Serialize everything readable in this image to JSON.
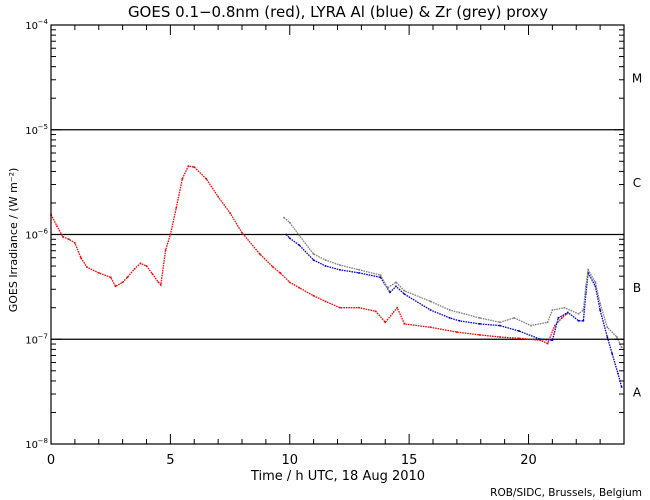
{
  "chart_data": {
    "type": "line",
    "title": "GOES 0.1−0.8nm (red), LYRA Al (blue) & Zr (grey) proxy",
    "xlabel": "Time / h UTC, 18 Aug 2010",
    "ylabel": "GOES Irradiance / (W m⁻²)",
    "xlim": [
      0,
      24
    ],
    "ylim": [
      1e-08,
      0.0001
    ],
    "yscale": "log",
    "x_ticks": [
      0,
      5,
      10,
      15,
      20
    ],
    "x_tick_labels": [
      "0",
      "5",
      "10",
      "15",
      "20"
    ],
    "y_ticks": [
      1e-08,
      1e-07,
      1e-06,
      1e-05,
      0.0001
    ],
    "y_tick_labels": [
      {
        "base": "10",
        "exp": "−8"
      },
      {
        "base": "10",
        "exp": "−7"
      },
      {
        "base": "10",
        "exp": "−6"
      },
      {
        "base": "10",
        "exp": "−5"
      },
      {
        "base": "10",
        "exp": "−4"
      }
    ],
    "reference_lines": [
      1e-07,
      1e-06,
      1e-05
    ],
    "flare_classes": [
      {
        "label": "A",
        "low": 1e-08,
        "high": 1e-07
      },
      {
        "label": "B",
        "low": 1e-07,
        "high": 1e-06
      },
      {
        "label": "C",
        "low": 1e-06,
        "high": 1e-05
      },
      {
        "label": "M",
        "low": 1e-05,
        "high": 0.0001
      }
    ],
    "grid": false,
    "series": [
      {
        "name": "GOES 0.1-0.8nm",
        "color": "#ff0000",
        "x": [
          0,
          0.25,
          0.5,
          0.75,
          1.0,
          1.25,
          1.5,
          2.0,
          2.5,
          2.7,
          3.0,
          3.2,
          3.5,
          3.75,
          4.0,
          4.25,
          4.5,
          4.6,
          4.8,
          5.0,
          5.25,
          5.5,
          5.75,
          6.0,
          6.5,
          7.0,
          7.5,
          8.0,
          8.75,
          9.3,
          9.6,
          10.0,
          10.4,
          11.0,
          11.5,
          12.1,
          12.9,
          13.6,
          14.0,
          14.5,
          14.8,
          15.9,
          17.0,
          17.95,
          18.8,
          19.6,
          20.5,
          20.8,
          21.1,
          21.4,
          21.6
        ],
        "values": [
          1.55e-06,
          1.2e-06,
          9.5e-07,
          9e-07,
          8.3e-07,
          6e-07,
          4.9e-07,
          4.3e-07,
          3.9e-07,
          3.2e-07,
          3.5e-07,
          3.9e-07,
          4.7e-07,
          5.3e-07,
          5e-07,
          4.2e-07,
          3.5e-07,
          3.3e-07,
          7.1e-07,
          1e-06,
          1.8e-06,
          3.4e-06,
          4.5e-06,
          4.4e-06,
          3.4e-06,
          2.3e-06,
          1.6e-06,
          1.04e-06,
          6.5e-07,
          4.9e-07,
          4.3e-07,
          3.5e-07,
          3.1e-07,
          2.6e-07,
          2.3e-07,
          2e-07,
          2e-07,
          1.85e-07,
          1.45e-07,
          2e-07,
          1.4e-07,
          1.3e-07,
          1.17e-07,
          1.1e-07,
          1.05e-07,
          1.02e-07,
          9.8e-08,
          9.1e-08,
          1.35e-07,
          1.6e-07,
          1.75e-07
        ]
      },
      {
        "name": "LYRA Al proxy",
        "color": "#0000cc",
        "x": [
          9.85,
          10.0,
          10.4,
          11.0,
          11.5,
          12.1,
          12.9,
          13.8,
          14.2,
          14.45,
          14.8,
          15.9,
          16.7,
          17.1,
          17.95,
          18.8,
          19.6,
          20.5,
          21.0,
          21.25,
          21.65,
          22.1,
          22.3,
          22.4,
          22.5,
          22.8,
          23.0,
          23.3,
          23.5,
          23.75,
          23.9
        ],
        "values": [
          1e-06,
          9.2e-07,
          7.9e-07,
          5.7e-07,
          5e-07,
          4.6e-07,
          4.3e-07,
          3.9e-07,
          2.8e-07,
          3.2e-07,
          2.7e-07,
          1.9e-07,
          1.6e-07,
          1.5e-07,
          1.4e-07,
          1.35e-07,
          1.2e-07,
          1e-07,
          9.8e-08,
          1.6e-07,
          1.8e-07,
          1.5e-07,
          1.5e-07,
          2.7e-07,
          4.3e-07,
          3.2e-07,
          1.9e-07,
          1.05e-07,
          7.3e-08,
          4.7e-08,
          3.5e-08
        ]
      },
      {
        "name": "LYRA Zr proxy",
        "color": "#808080",
        "x": [
          9.76,
          10.0,
          10.4,
          11.0,
          11.5,
          12.1,
          12.9,
          13.8,
          14.1,
          14.45,
          14.8,
          15.9,
          16.7,
          17.1,
          17.95,
          18.8,
          19.4,
          20.1,
          20.8,
          21.0,
          21.5,
          22.1,
          22.3,
          22.4,
          22.5,
          22.8,
          23.0,
          23.3,
          23.7,
          23.9
        ],
        "values": [
          1.45e-06,
          1.3e-06,
          9.8e-07,
          6.5e-07,
          5.7e-07,
          5.1e-07,
          4.6e-07,
          4.1e-07,
          3.1e-07,
          3.5e-07,
          2.9e-07,
          2.3e-07,
          1.9e-07,
          1.8e-07,
          1.6e-07,
          1.45e-07,
          1.6e-07,
          1.35e-07,
          1.45e-07,
          1.9e-07,
          2e-07,
          1.75e-07,
          1.9e-07,
          3.2e-07,
          4.6e-07,
          3.5e-07,
          2.2e-07,
          1.3e-07,
          1.05e-07,
          8.4e-08
        ]
      }
    ],
    "credit": "ROB/SIDC, Brussels, Belgium"
  }
}
